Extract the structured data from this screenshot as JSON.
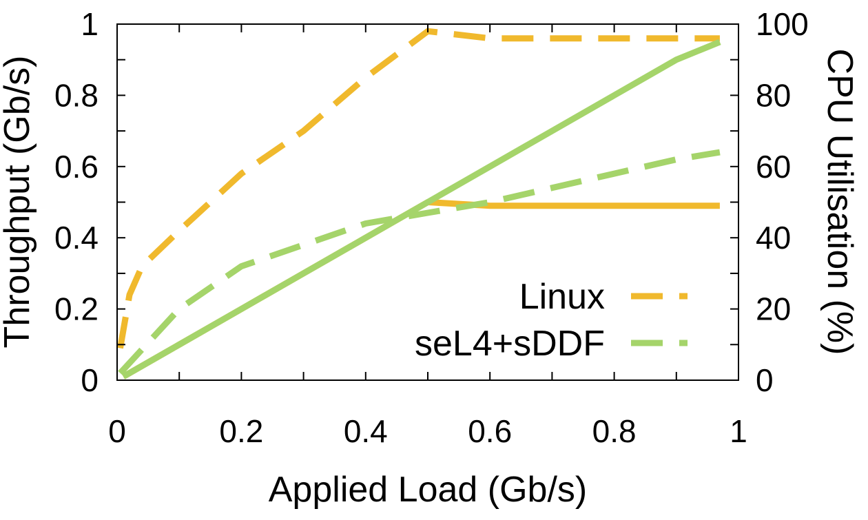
{
  "chart_data": {
    "type": "line",
    "xlabel": "Applied Load (Gb/s)",
    "ylabel": "Throughput (Gb/s)",
    "y2label": "CPU Utilisation (%)",
    "xlim": [
      0,
      1
    ],
    "ylim": [
      0,
      1
    ],
    "y2lim": [
      0,
      100
    ],
    "x_ticks": [
      "0",
      "0.2",
      "0.4",
      "0.6",
      "0.8",
      "1"
    ],
    "y_ticks": [
      "0",
      "0.2",
      "0.4",
      "0.6",
      "0.8",
      "1"
    ],
    "y2_ticks": [
      "0",
      "20",
      "40",
      "60",
      "80",
      "100"
    ],
    "grid": false,
    "legend_position": "bottom-right",
    "colors": {
      "linux": "#f0b92d",
      "sel4": "#a5d46a"
    },
    "legend": [
      {
        "label": "Linux",
        "color": "#f0b92d"
      },
      {
        "label": "seL4+sDDF",
        "color": "#a5d46a"
      }
    ],
    "series": [
      {
        "system": "Linux",
        "metric": "throughput",
        "axis": "left",
        "style": "solid",
        "color": "#f0b92d",
        "x": [
          0.01,
          0.1,
          0.2,
          0.3,
          0.4,
          0.5,
          0.6,
          0.7,
          0.8,
          0.9,
          0.97
        ],
        "y": [
          0.01,
          0.1,
          0.2,
          0.3,
          0.4,
          0.5,
          0.49,
          0.49,
          0.49,
          0.49,
          0.49
        ]
      },
      {
        "system": "Linux",
        "metric": "cpu_utilisation",
        "axis": "right",
        "style": "dashed",
        "color": "#f0b92d",
        "x": [
          0.005,
          0.02,
          0.04,
          0.1,
          0.2,
          0.3,
          0.4,
          0.5,
          0.6,
          0.7,
          0.8,
          0.9,
          0.97
        ],
        "y": [
          9,
          24,
          32,
          42,
          58,
          70,
          85,
          98,
          96,
          96,
          96,
          96,
          96
        ]
      },
      {
        "system": "seL4+sDDF",
        "metric": "throughput",
        "axis": "left",
        "style": "solid",
        "color": "#a5d46a",
        "x": [
          0.01,
          0.1,
          0.2,
          0.3,
          0.4,
          0.5,
          0.6,
          0.7,
          0.8,
          0.9,
          0.97
        ],
        "y": [
          0.01,
          0.1,
          0.2,
          0.3,
          0.4,
          0.5,
          0.6,
          0.7,
          0.8,
          0.9,
          0.95
        ]
      },
      {
        "system": "seL4+sDDF",
        "metric": "cpu_utilisation",
        "axis": "right",
        "style": "dashed",
        "color": "#a5d46a",
        "x": [
          0.005,
          0.1,
          0.2,
          0.3,
          0.4,
          0.5,
          0.6,
          0.7,
          0.8,
          0.9,
          0.97
        ],
        "y": [
          2,
          20,
          32,
          38,
          44,
          47,
          50,
          54,
          58,
          62,
          64
        ]
      }
    ]
  }
}
